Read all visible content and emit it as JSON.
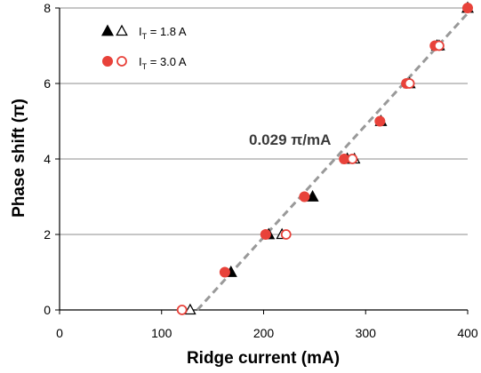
{
  "chart_data": {
    "type": "scatter",
    "xlabel": "Ridge current (mA)",
    "ylabel": "Phase shift (π)",
    "xlim": [
      0,
      400
    ],
    "ylim": [
      0,
      8
    ],
    "xticks": [
      0,
      100,
      200,
      300,
      400
    ],
    "yticks": [
      0,
      2,
      4,
      6,
      8
    ],
    "grid": "horizontal",
    "legend_position": "top-left",
    "annotation": "0.029 π/mA",
    "legend": [
      {
        "symbol": "triangle",
        "subscript": "T",
        "text": " = 1.8 A",
        "prefix": "I",
        "color": "#000000"
      },
      {
        "symbol": "circle",
        "subscript": "T",
        "text": " = 3.0 A",
        "prefix": "I",
        "color": "#e8423a"
      }
    ],
    "fit_line": {
      "x": [
        135,
        403
      ],
      "y": [
        0,
        7.95
      ],
      "color": "#999999",
      "style": "dashed"
    },
    "series": [
      {
        "name": "IT = 1.8 A (filled)",
        "marker": "triangle-filled",
        "color": "#000000",
        "points": [
          [
            168,
            1
          ],
          [
            205,
            2
          ],
          [
            248,
            3
          ],
          [
            282,
            4
          ],
          [
            315,
            5
          ],
          [
            343,
            6
          ],
          [
            370,
            7
          ],
          [
            400,
            8
          ]
        ]
      },
      {
        "name": "IT = 1.8 A (open)",
        "marker": "triangle-open",
        "color": "#000000",
        "points": [
          [
            128,
            0
          ],
          [
            218,
            2
          ],
          [
            289,
            4
          ],
          [
            372,
            7
          ]
        ]
      },
      {
        "name": "IT = 3.0 A (filled)",
        "marker": "circle-filled",
        "color": "#e8423a",
        "points": [
          [
            162,
            1
          ],
          [
            202,
            2
          ],
          [
            240,
            3
          ],
          [
            279,
            4
          ],
          [
            314,
            5
          ],
          [
            340,
            6
          ],
          [
            368,
            7
          ],
          [
            400,
            8
          ]
        ]
      },
      {
        "name": "IT = 3.0 A (open)",
        "marker": "circle-open",
        "color": "#e8423a",
        "points": [
          [
            120,
            0
          ],
          [
            222,
            2
          ],
          [
            287,
            4
          ],
          [
            343,
            6
          ],
          [
            372,
            7
          ]
        ]
      }
    ]
  }
}
